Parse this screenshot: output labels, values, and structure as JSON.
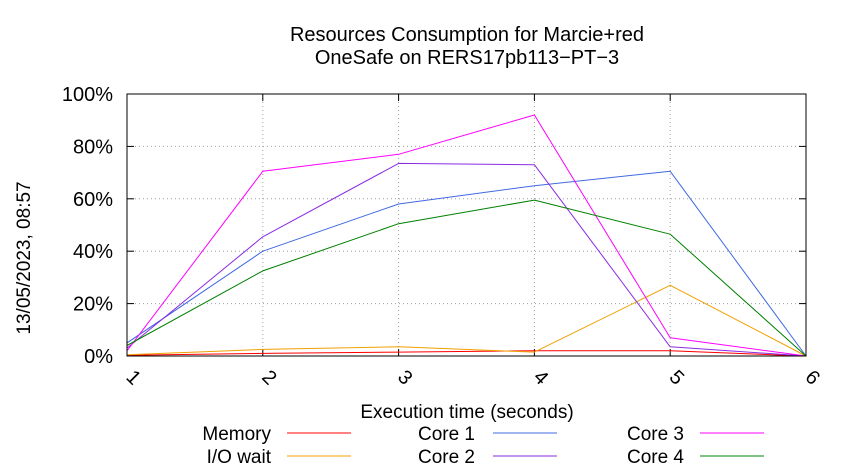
{
  "timestamp": "13/05/2023, 08:57",
  "chart_data": {
    "type": "line",
    "title": [
      "Resources Consumption for Marcie+red",
      "OneSafe on RERS17pb113−PT−3"
    ],
    "xlabel": "Execution time (seconds)",
    "ylabel": "",
    "x": [
      1,
      2,
      3,
      4,
      5,
      6
    ],
    "x_tick_labels": [
      "1",
      "2",
      "3",
      "4",
      "5",
      "6"
    ],
    "xlim": [
      1,
      6
    ],
    "ylim": [
      0,
      100
    ],
    "y_ticks": [
      0,
      20,
      40,
      60,
      80,
      100
    ],
    "y_tick_labels": [
      "0%",
      "20%",
      "40%",
      "60%",
      "80%",
      "100%"
    ],
    "grid": true,
    "legend_position": "bottom",
    "series": [
      {
        "name": "Memory",
        "color": "#ff0000",
        "values": [
          0.3,
          1.0,
          1.5,
          2.0,
          2.0,
          0
        ]
      },
      {
        "name": "I/O wait",
        "color": "#f0a000",
        "values": [
          0.5,
          2.5,
          3.5,
          1.5,
          27,
          0
        ]
      },
      {
        "name": "Core 1",
        "color": "#4169e1",
        "values": [
          5,
          40,
          58,
          65,
          70.5,
          0
        ]
      },
      {
        "name": "Core 2",
        "color": "#8a2be2",
        "values": [
          3,
          45.5,
          73.5,
          73,
          3.5,
          0
        ]
      },
      {
        "name": "Core 3",
        "color": "#ff00ff",
        "values": [
          2,
          70.5,
          77,
          92,
          7,
          0
        ]
      },
      {
        "name": "Core 4",
        "color": "#008000",
        "values": [
          4,
          32.5,
          50.5,
          59.5,
          46.5,
          0
        ]
      }
    ]
  }
}
